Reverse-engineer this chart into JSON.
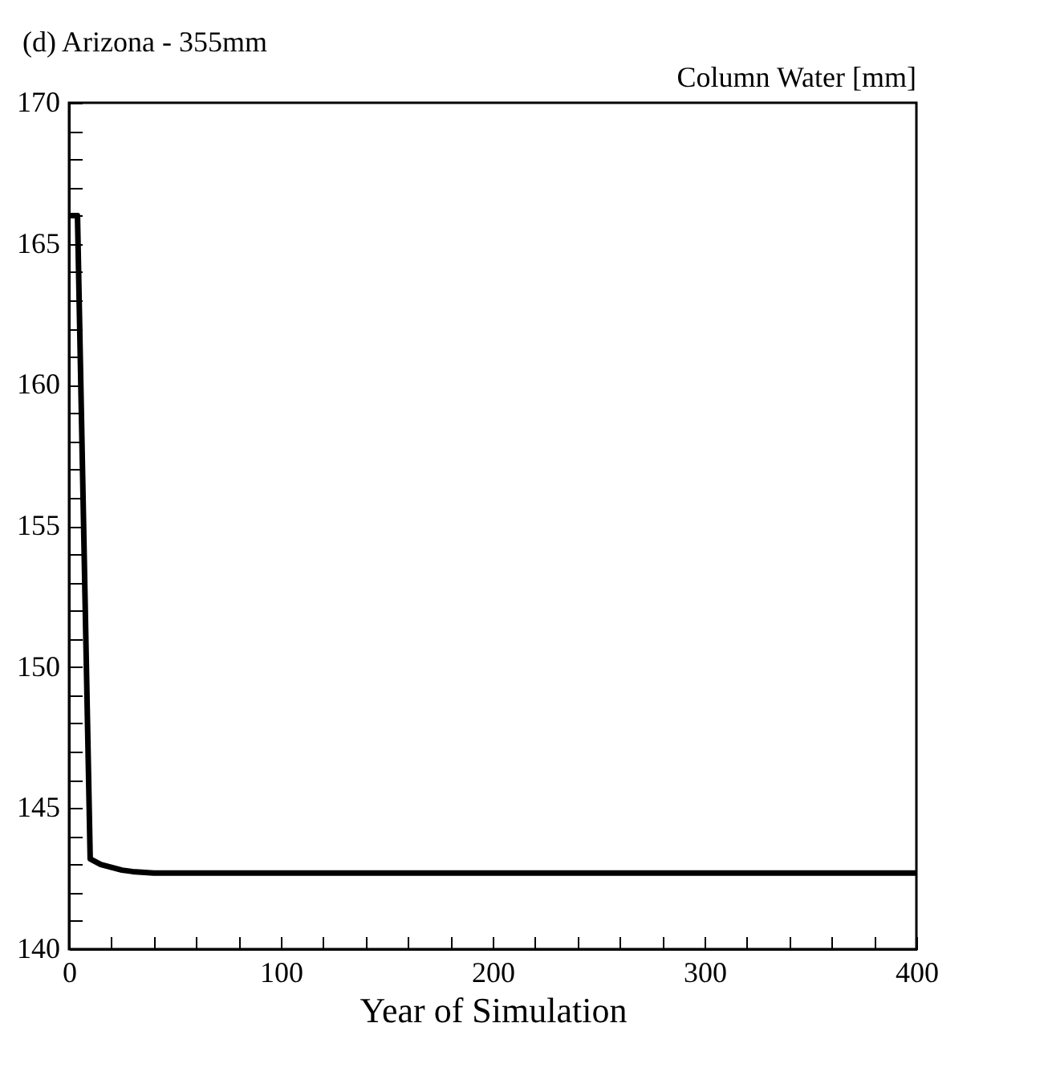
{
  "chart_data": {
    "type": "line",
    "title": "(d) Arizona - 355mm",
    "xlabel": "Year of Simulation",
    "annotations": [
      "Column Water [mm]"
    ],
    "x": [
      0,
      4,
      10,
      15,
      20,
      25,
      30,
      40,
      50,
      100,
      150,
      200,
      250,
      300,
      350,
      400
    ],
    "series": [
      {
        "color": "#000000",
        "values": [
          166.0,
          166.0,
          143.2,
          143.0,
          142.9,
          142.8,
          142.75,
          142.7,
          142.7,
          142.7,
          142.7,
          142.7,
          142.7,
          142.7,
          142.7,
          142.7
        ]
      }
    ],
    "xlim": [
      0,
      400
    ],
    "xticks": [
      0,
      {
        "value": 20,
        "label": null
      },
      {
        "value": 40,
        "label": null
      },
      {
        "value": 60,
        "label": null
      },
      {
        "value": 80,
        "label": null
      },
      100,
      {
        "value": 120,
        "label": null
      },
      {
        "value": 140,
        "label": null
      },
      {
        "value": 160,
        "label": null
      },
      {
        "value": 180,
        "label": null
      },
      200,
      {
        "value": 220,
        "label": null
      },
      {
        "value": 240,
        "label": null
      },
      {
        "value": 260,
        "label": null
      },
      {
        "value": 280,
        "label": null
      },
      300,
      {
        "value": 320,
        "label": null
      },
      {
        "value": 340,
        "label": null
      },
      {
        "value": 360,
        "label": null
      },
      {
        "value": 380,
        "label": null
      },
      400
    ],
    "ylim": [
      140,
      170
    ],
    "yticks": [
      140,
      {
        "value": 141,
        "label": null
      },
      {
        "value": 142,
        "label": null
      },
      {
        "value": 143,
        "label": null
      },
      {
        "value": 144,
        "label": null
      },
      145,
      {
        "value": 146,
        "label": null
      },
      {
        "value": 147,
        "label": null
      },
      {
        "value": 148,
        "label": null
      },
      {
        "value": 149,
        "label": null
      },
      150,
      {
        "value": 151,
        "label": null
      },
      {
        "value": 152,
        "label": null
      },
      {
        "value": 153,
        "label": null
      },
      {
        "value": 154,
        "label": null
      },
      155,
      {
        "value": 156,
        "label": null
      },
      {
        "value": 157,
        "label": null
      },
      {
        "value": 158,
        "label": null
      },
      {
        "value": 159,
        "label": null
      },
      160,
      {
        "value": 161,
        "label": null
      },
      {
        "value": 162,
        "label": null
      },
      {
        "value": 163,
        "label": null
      },
      {
        "value": 164,
        "label": null
      },
      165,
      {
        "value": 166,
        "label": null
      },
      {
        "value": 167,
        "label": null
      },
      {
        "value": 168,
        "label": null
      },
      {
        "value": 169,
        "label": null
      },
      170
    ],
    "grid": false,
    "line_style": "solid",
    "marker": "none"
  }
}
